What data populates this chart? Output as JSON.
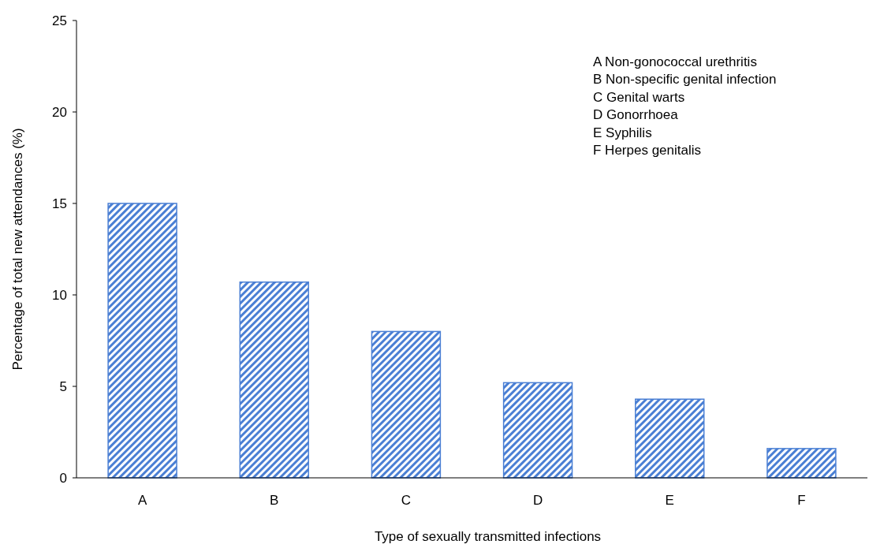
{
  "chart_data": {
    "type": "bar",
    "xlabel": "Type of sexually transmitted infections",
    "ylabel": "Percentage of total new attendances (%)",
    "categories": [
      "A",
      "B",
      "C",
      "D",
      "E",
      "F"
    ],
    "values": [
      15.0,
      10.7,
      8.0,
      5.2,
      4.3,
      1.6
    ],
    "color": "#4a7fd4",
    "ylim": [
      0,
      25
    ],
    "yticks": [
      0,
      5,
      10,
      15,
      20,
      25
    ],
    "grid": false,
    "annotations": [
      "A  Non-gonococcal urethritis",
      "B  Non-specific genital infection",
      "C  Genital warts",
      "D  Gonorrhoea",
      "E  Syphilis",
      "F  Herpes genitalis"
    ]
  }
}
